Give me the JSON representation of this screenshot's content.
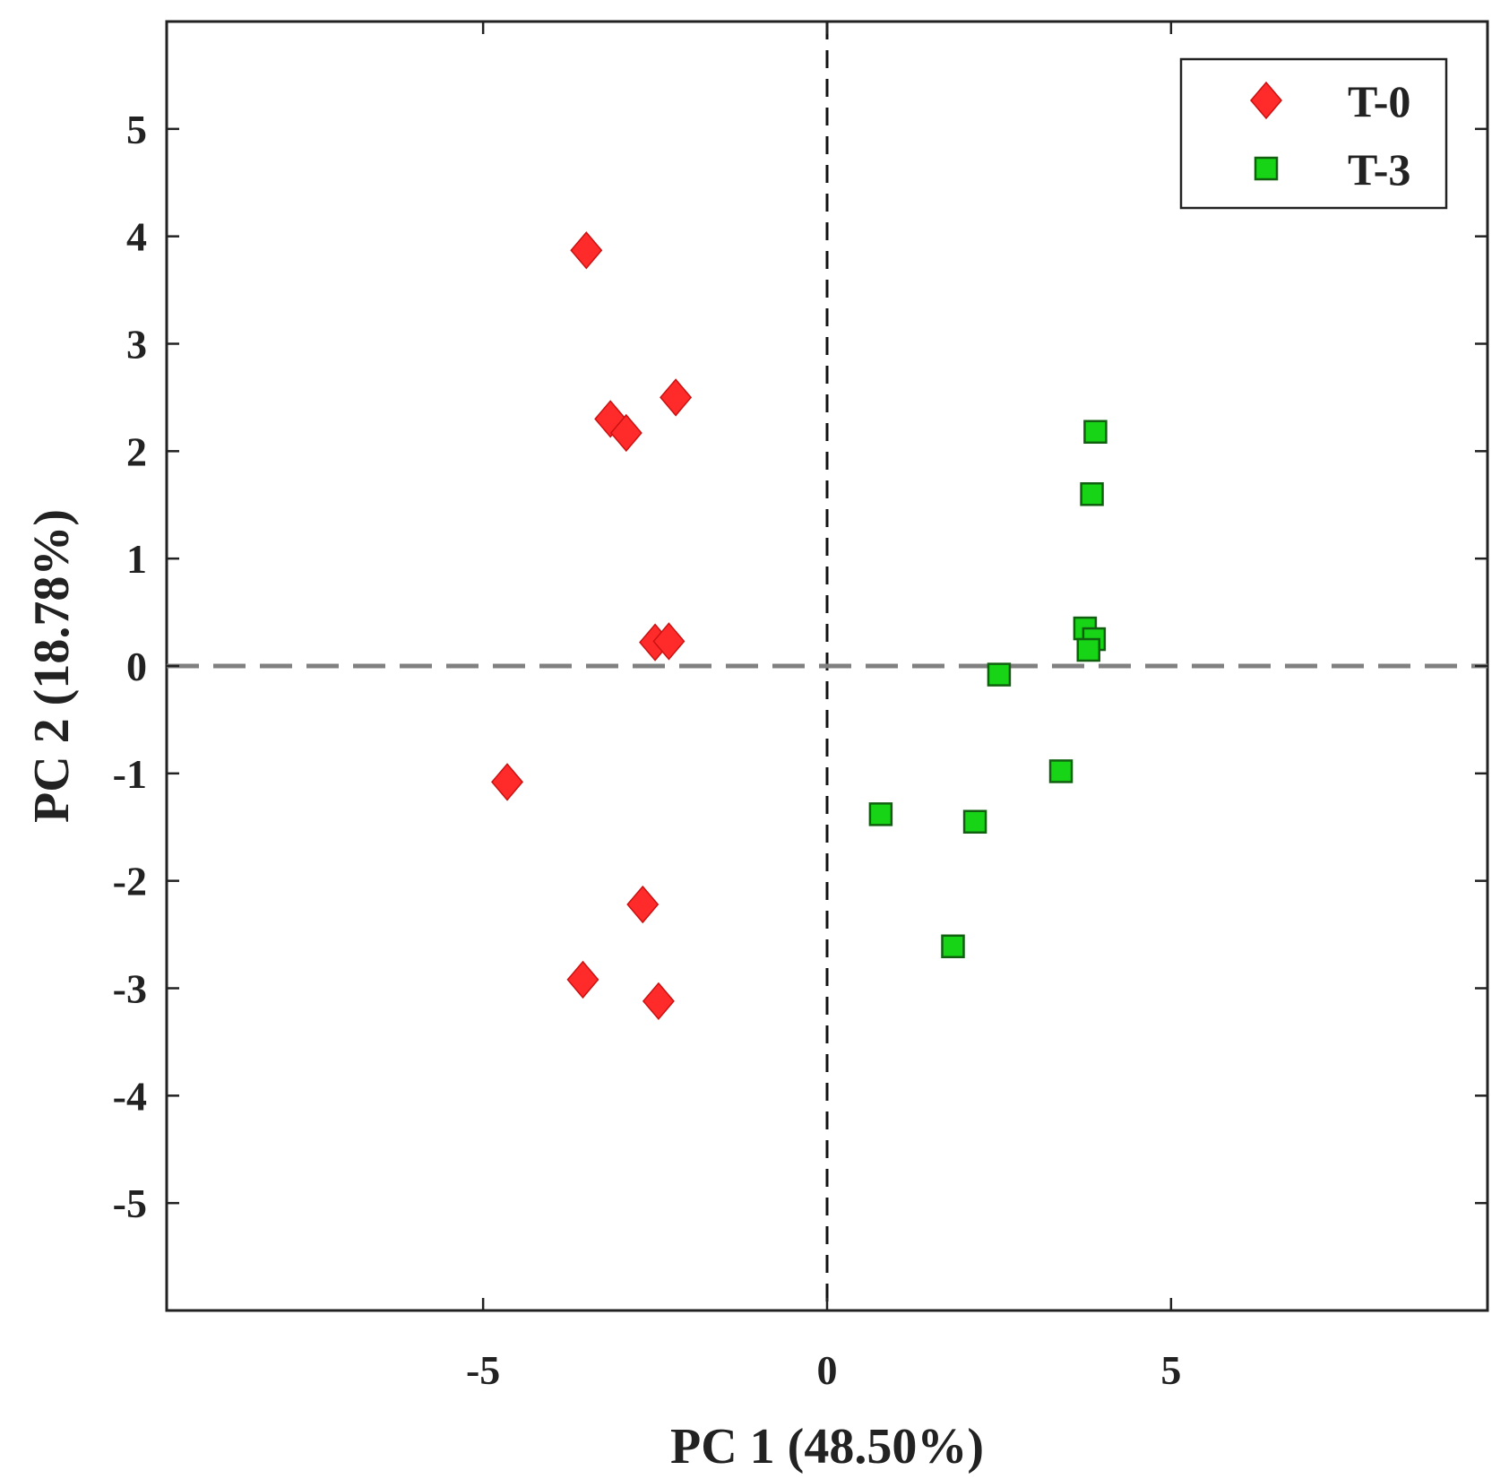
{
  "chart_data": {
    "type": "scatter",
    "title": "",
    "xlabel": "PC 1 (48.50%)",
    "ylabel": "PC 2 (18.78%)",
    "xlim": [
      -9.6,
      9.6
    ],
    "ylim": [
      -6.0,
      6.0
    ],
    "xticks": [
      -5,
      0,
      5
    ],
    "xtick_labels": [
      "-5",
      "0",
      "5"
    ],
    "yticks": [
      5,
      4,
      3,
      2,
      1,
      0,
      -1,
      -2,
      -3,
      -4,
      -5
    ],
    "ytick_labels": [
      "5",
      "4",
      "3",
      "2",
      "1",
      "0",
      "-1",
      "-2",
      "-3",
      "-4",
      "-5"
    ],
    "grid": false,
    "reference_lines": [
      {
        "orientation": "vertical",
        "value": 0,
        "style": "dashed",
        "color": "#111111"
      },
      {
        "orientation": "horizontal",
        "value": 0,
        "style": "dashed",
        "color": "#808080"
      }
    ],
    "legend_position": "top-right",
    "series": [
      {
        "name": "T-0",
        "marker": "diamond",
        "color": "#ff2b2b",
        "points": [
          {
            "x": -3.5,
            "y": 3.87
          },
          {
            "x": -2.2,
            "y": 2.5
          },
          {
            "x": -3.15,
            "y": 2.3
          },
          {
            "x": -2.92,
            "y": 2.17
          },
          {
            "x": -2.5,
            "y": 0.22
          },
          {
            "x": -2.3,
            "y": 0.23
          },
          {
            "x": -4.65,
            "y": -1.08
          },
          {
            "x": -2.68,
            "y": -2.22
          },
          {
            "x": -3.55,
            "y": -2.92
          },
          {
            "x": -2.45,
            "y": -3.12
          }
        ]
      },
      {
        "name": "T-3",
        "marker": "square",
        "color": "#17d417",
        "points": [
          {
            "x": 3.9,
            "y": 2.18
          },
          {
            "x": 3.85,
            "y": 1.6
          },
          {
            "x": 3.75,
            "y": 0.35
          },
          {
            "x": 3.88,
            "y": 0.25
          },
          {
            "x": 3.8,
            "y": 0.15
          },
          {
            "x": 2.5,
            "y": -0.08
          },
          {
            "x": 3.4,
            "y": -0.98
          },
          {
            "x": 0.78,
            "y": -1.38
          },
          {
            "x": 2.15,
            "y": -1.45
          },
          {
            "x": 1.83,
            "y": -2.61
          }
        ]
      }
    ]
  }
}
